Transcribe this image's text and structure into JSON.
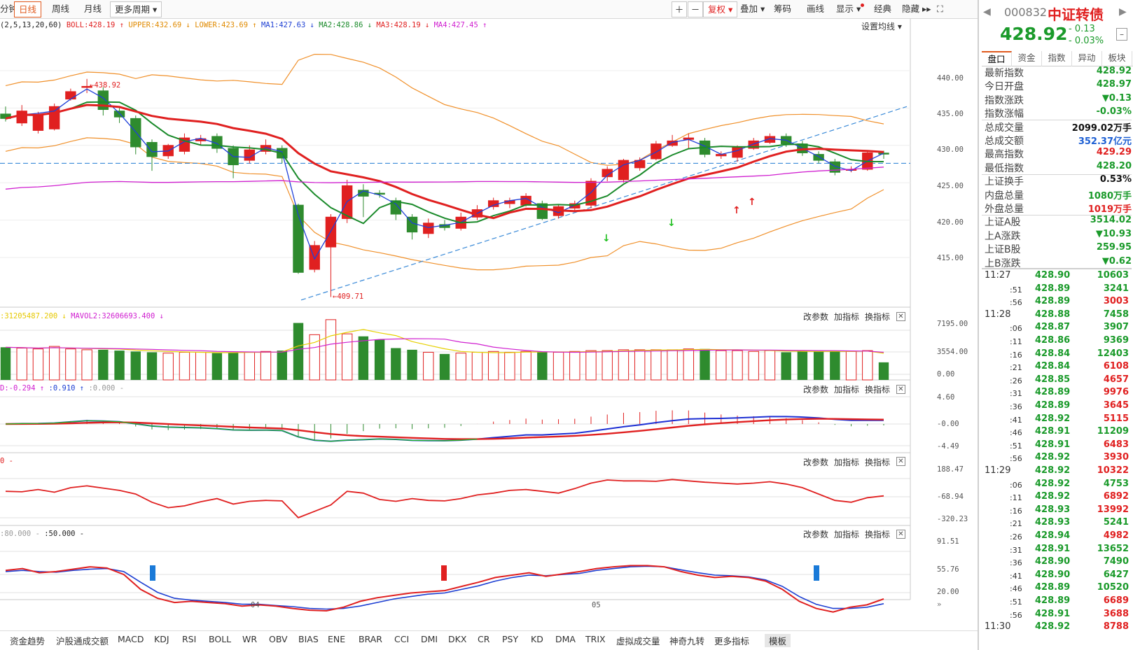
{
  "toolbar": {
    "min_tab": "分钟",
    "day_tab": "日线",
    "week_tab": "周线",
    "month_tab": "月线",
    "more_period": "更多周期 ▾",
    "zoom_in": "＋",
    "zoom_out": "－",
    "fq": "复权 ▾",
    "overlay": "叠加 ▾",
    "chips": "筹码",
    "draw": "画线",
    "display": "显示 ▾",
    "classic": "经典",
    "hide": "隐藏 ▸▸",
    "fullscreen": "⛶"
  },
  "main_legend": {
    "params": "(2,5,13,20,60)",
    "boll": "BOLL:428.19 ↑",
    "upper": "UPPER:432.69 ↓",
    "lower": "LOWER:423.69 ↑",
    "ma1": "MA1:427.63 ↓",
    "ma2": "MA2:428.86 ↓",
    "ma3": "MA3:428.19 ↓",
    "ma4": "MA4:427.45 ↑",
    "set_ma": "设置均线 ▾"
  },
  "main_axis": [
    "440.00",
    "435.00",
    "430.00",
    "425.00",
    "420.00",
    "415.00"
  ],
  "annotations": {
    "high": "438.92",
    "low": "409.71"
  },
  "vol_legend": {
    "v1": ":31205487.200 ↓",
    "v2": "MAVOL2:32606693.400 ↓"
  },
  "vol_axis": [
    "7195.00",
    "3554.00",
    "0.00"
  ],
  "macd_legend": {
    "d": "D:-0.294 ↑",
    "b": ":0.910 ↑",
    "c": ":0.000 -"
  },
  "macd_axis": [
    "4.60",
    "-0.00",
    "-4.49"
  ],
  "cci_legend": {
    "a": "0 -"
  },
  "cci_axis": [
    "188.47",
    "-68.94",
    "-320.23"
  ],
  "kdj_legend": {
    "a": ":80.000 -",
    "b": ":50.000 -"
  },
  "kdj_axis": [
    "91.51",
    "55.76",
    "20.00"
  ],
  "ops": {
    "change": "改参数",
    "add": "加指标",
    "swap": "换指标",
    "close": "✕"
  },
  "dates": [
    "04",
    "05"
  ],
  "bottom_tabs": [
    "资金趋势",
    "沪股通成交额",
    "MACD",
    "KDJ",
    "RSI",
    "BOLL",
    "WR",
    "OBV",
    "BIAS",
    "ENE",
    "BRAR",
    "CCI",
    "DMI",
    "DKX",
    "CR",
    "PSY",
    "KD",
    "DMA",
    "TRIX",
    "虚拟成交量",
    "神奇九转",
    "更多指标",
    "模板"
  ],
  "quote": {
    "code": "000832",
    "name": "中证转债",
    "price": "428.92",
    "change": "- 0.13",
    "change_pct": "- 0.03%",
    "tabs": [
      "盘口",
      "资金",
      "指数",
      "异动",
      "板块"
    ],
    "rows": [
      {
        "k": "最新指数",
        "v": "428.92",
        "c": "green"
      },
      {
        "k": "今日开盘",
        "v": "428.97",
        "c": "green"
      },
      {
        "k": "指数涨跌",
        "v": "▼0.13",
        "c": "green"
      },
      {
        "k": "指数涨幅",
        "v": "-0.03%",
        "c": "green"
      },
      {
        "k": "总成交量",
        "v": "2099.02万手",
        "c": "black"
      },
      {
        "k": "总成交额",
        "v": "352.37亿元",
        "c": "blue"
      },
      {
        "k": "最高指数",
        "v": "429.29",
        "c": "red"
      },
      {
        "k": "最低指数",
        "v": "428.20",
        "c": "green"
      },
      {
        "k": "上证换手",
        "v": "0.53%",
        "c": "black"
      },
      {
        "k": "内盘总量",
        "v": "1080万手",
        "c": "green"
      },
      {
        "k": "外盘总量",
        "v": "1019万手",
        "c": "red"
      },
      {
        "k": "上证A股",
        "v": "3514.02",
        "c": "green"
      },
      {
        "k": "上A涨跌",
        "v": "▼10.93",
        "c": "green"
      },
      {
        "k": "上证B股",
        "v": "259.95",
        "c": "green"
      },
      {
        "k": "上B涨跌",
        "v": "▼0.62",
        "c": "green"
      }
    ],
    "ticks": [
      {
        "t": "11:27",
        "p": "428.90",
        "v": "10603",
        "c": "green"
      },
      {
        "t": ":51",
        "p": "428.89",
        "v": "3241",
        "c": "green"
      },
      {
        "t": ":56",
        "p": "428.89",
        "v": "3003",
        "c": "red"
      },
      {
        "t": "11:28",
        "p": "428.88",
        "v": "7458",
        "c": "green"
      },
      {
        "t": ":06",
        "p": "428.87",
        "v": "3907",
        "c": "green"
      },
      {
        "t": ":11",
        "p": "428.86",
        "v": "9369",
        "c": "green"
      },
      {
        "t": ":16",
        "p": "428.84",
        "v": "12403",
        "c": "green"
      },
      {
        "t": ":21",
        "p": "428.84",
        "v": "6108",
        "c": "red"
      },
      {
        "t": ":26",
        "p": "428.85",
        "v": "4657",
        "c": "red"
      },
      {
        "t": ":31",
        "p": "428.89",
        "v": "9976",
        "c": "red"
      },
      {
        "t": ":36",
        "p": "428.89",
        "v": "3645",
        "c": "red"
      },
      {
        "t": ":41",
        "p": "428.92",
        "v": "5115",
        "c": "red"
      },
      {
        "t": ":46",
        "p": "428.91",
        "v": "11209",
        "c": "green"
      },
      {
        "t": ":51",
        "p": "428.91",
        "v": "6483",
        "c": "red"
      },
      {
        "t": ":56",
        "p": "428.92",
        "v": "3930",
        "c": "red"
      },
      {
        "t": "11:29",
        "p": "428.92",
        "v": "10322",
        "c": "red"
      },
      {
        "t": ":06",
        "p": "428.92",
        "v": "4753",
        "c": "green"
      },
      {
        "t": ":11",
        "p": "428.92",
        "v": "6892",
        "c": "red"
      },
      {
        "t": ":16",
        "p": "428.93",
        "v": "13992",
        "c": "red"
      },
      {
        "t": ":21",
        "p": "428.93",
        "v": "5241",
        "c": "green"
      },
      {
        "t": ":26",
        "p": "428.94",
        "v": "4982",
        "c": "red"
      },
      {
        "t": ":31",
        "p": "428.91",
        "v": "13652",
        "c": "green"
      },
      {
        "t": ":36",
        "p": "428.90",
        "v": "7490",
        "c": "green"
      },
      {
        "t": ":41",
        "p": "428.90",
        "v": "6427",
        "c": "green"
      },
      {
        "t": ":46",
        "p": "428.89",
        "v": "10520",
        "c": "green"
      },
      {
        "t": ":51",
        "p": "428.89",
        "v": "6689",
        "c": "red"
      },
      {
        "t": ":56",
        "p": "428.91",
        "v": "3688",
        "c": "red"
      },
      {
        "t": "11:30",
        "p": "428.92",
        "v": "8788",
        "c": "red"
      }
    ]
  },
  "chart_data": {
    "type": "candlestick",
    "ylim": [
      409,
      443
    ],
    "candles": [
      {
        "o": 434.2,
        "c": 433.6,
        "h": 435.2,
        "l": 433.2,
        "vol": 3900
      },
      {
        "o": 433.0,
        "c": 434.6,
        "h": 435.4,
        "l": 432.6,
        "vol": 3800
      },
      {
        "o": 432.0,
        "c": 434.0,
        "h": 434.5,
        "l": 431.6,
        "vol": 3700
      },
      {
        "o": 432.2,
        "c": 435.2,
        "h": 435.6,
        "l": 432.0,
        "vol": 4000
      },
      {
        "o": 436.2,
        "c": 437.2,
        "h": 437.6,
        "l": 436.0,
        "vol": 3700
      },
      {
        "o": 437.8,
        "c": 437.9,
        "h": 438.9,
        "l": 437.0,
        "vol": 3600
      },
      {
        "o": 437.3,
        "c": 434.8,
        "h": 437.8,
        "l": 434.0,
        "vol": 3600
      },
      {
        "o": 434.6,
        "c": 433.8,
        "h": 435.0,
        "l": 433.0,
        "vol": 3500
      },
      {
        "o": 433.6,
        "c": 429.8,
        "h": 434.0,
        "l": 428.8,
        "vol": 3400
      },
      {
        "o": 430.4,
        "c": 428.5,
        "h": 430.8,
        "l": 426.6,
        "vol": 3300
      },
      {
        "o": 428.6,
        "c": 430.0,
        "h": 430.2,
        "l": 428.2,
        "vol": 3200
      },
      {
        "o": 429.2,
        "c": 431.0,
        "h": 431.6,
        "l": 428.8,
        "vol": 3300
      },
      {
        "o": 430.6,
        "c": 430.9,
        "h": 431.4,
        "l": 430.0,
        "vol": 3300
      },
      {
        "o": 431.2,
        "c": 429.6,
        "h": 431.6,
        "l": 429.0,
        "vol": 3200
      },
      {
        "o": 429.6,
        "c": 427.4,
        "h": 430.0,
        "l": 425.6,
        "vol": 3300
      },
      {
        "o": 428.0,
        "c": 429.4,
        "h": 430.0,
        "l": 427.6,
        "vol": 3300
      },
      {
        "o": 429.2,
        "c": 430.0,
        "h": 430.8,
        "l": 428.8,
        "vol": 3400
      },
      {
        "o": 429.6,
        "c": 428.3,
        "h": 430.0,
        "l": 427.6,
        "vol": 3500
      },
      {
        "o": 422.0,
        "c": 413.0,
        "h": 422.2,
        "l": 412.8,
        "vol": 6800
      },
      {
        "o": 413.4,
        "c": 416.6,
        "h": 417.2,
        "l": 413.0,
        "vol": 5400
      },
      {
        "o": 416.4,
        "c": 420.4,
        "h": 420.8,
        "l": 409.7,
        "vol": 7195
      },
      {
        "o": 420.2,
        "c": 424.6,
        "h": 425.4,
        "l": 419.6,
        "vol": 5500
      },
      {
        "o": 424.0,
        "c": 423.2,
        "h": 424.8,
        "l": 420.4,
        "vol": 5200
      },
      {
        "o": 423.6,
        "c": 423.5,
        "h": 424.0,
        "l": 423.0,
        "vol": 4800
      },
      {
        "o": 422.6,
        "c": 420.8,
        "h": 423.0,
        "l": 420.0,
        "vol": 3800
      },
      {
        "o": 420.4,
        "c": 418.4,
        "h": 420.8,
        "l": 417.4,
        "vol": 3600
      },
      {
        "o": 418.2,
        "c": 419.6,
        "h": 420.2,
        "l": 417.6,
        "vol": 3300
      },
      {
        "o": 419.4,
        "c": 419.0,
        "h": 420.0,
        "l": 418.6,
        "vol": 3100
      },
      {
        "o": 418.9,
        "c": 420.4,
        "h": 421.0,
        "l": 418.6,
        "vol": 3200
      },
      {
        "o": 420.4,
        "c": 421.4,
        "h": 422.0,
        "l": 420.0,
        "vol": 3300
      },
      {
        "o": 421.8,
        "c": 422.6,
        "h": 423.0,
        "l": 421.4,
        "vol": 3400
      },
      {
        "o": 422.2,
        "c": 422.6,
        "h": 423.0,
        "l": 421.6,
        "vol": 3300
      },
      {
        "o": 422.0,
        "c": 423.2,
        "h": 423.6,
        "l": 421.8,
        "vol": 3400
      },
      {
        "o": 422.2,
        "c": 420.2,
        "h": 422.6,
        "l": 420.0,
        "vol": 3300
      },
      {
        "o": 420.6,
        "c": 421.8,
        "h": 422.0,
        "l": 420.2,
        "vol": 3300
      },
      {
        "o": 421.6,
        "c": 422.2,
        "h": 422.6,
        "l": 421.2,
        "vol": 3400
      },
      {
        "o": 422.0,
        "c": 425.2,
        "h": 425.6,
        "l": 421.6,
        "vol": 3500
      },
      {
        "o": 425.8,
        "c": 426.8,
        "h": 427.2,
        "l": 425.2,
        "vol": 3500
      },
      {
        "o": 425.4,
        "c": 428.0,
        "h": 428.2,
        "l": 425.0,
        "vol": 3600
      },
      {
        "o": 427.0,
        "c": 428.0,
        "h": 428.4,
        "l": 426.6,
        "vol": 3600
      },
      {
        "o": 428.2,
        "c": 430.2,
        "h": 430.6,
        "l": 428.0,
        "vol": 3600
      },
      {
        "o": 430.0,
        "c": 430.6,
        "h": 431.4,
        "l": 429.8,
        "vol": 3600
      },
      {
        "o": 430.8,
        "c": 431.0,
        "h": 431.6,
        "l": 429.6,
        "vol": 3700
      },
      {
        "o": 430.6,
        "c": 428.8,
        "h": 431.0,
        "l": 428.4,
        "vol": 3700
      },
      {
        "o": 428.6,
        "c": 428.8,
        "h": 429.2,
        "l": 428.2,
        "vol": 3500
      },
      {
        "o": 428.4,
        "c": 429.8,
        "h": 430.0,
        "l": 427.8,
        "vol": 3500
      },
      {
        "o": 429.6,
        "c": 430.6,
        "h": 431.0,
        "l": 429.4,
        "vol": 3400
      },
      {
        "o": 430.4,
        "c": 431.2,
        "h": 431.6,
        "l": 430.2,
        "vol": 3500
      },
      {
        "o": 431.2,
        "c": 430.2,
        "h": 431.6,
        "l": 429.8,
        "vol": 3300
      },
      {
        "o": 430.2,
        "c": 429.0,
        "h": 430.6,
        "l": 428.6,
        "vol": 3400
      },
      {
        "o": 428.8,
        "c": 428.0,
        "h": 429.2,
        "l": 427.6,
        "vol": 3400
      },
      {
        "o": 427.8,
        "c": 426.4,
        "h": 428.2,
        "l": 426.0,
        "vol": 3500
      },
      {
        "o": 426.8,
        "c": 426.8,
        "h": 427.2,
        "l": 426.4,
        "vol": 3400
      },
      {
        "o": 426.8,
        "c": 429.0,
        "h": 429.2,
        "l": 426.6,
        "vol": 3500
      },
      {
        "o": 428.97,
        "c": 428.92,
        "h": 429.29,
        "l": 428.2,
        "vol": 2099
      }
    ]
  }
}
